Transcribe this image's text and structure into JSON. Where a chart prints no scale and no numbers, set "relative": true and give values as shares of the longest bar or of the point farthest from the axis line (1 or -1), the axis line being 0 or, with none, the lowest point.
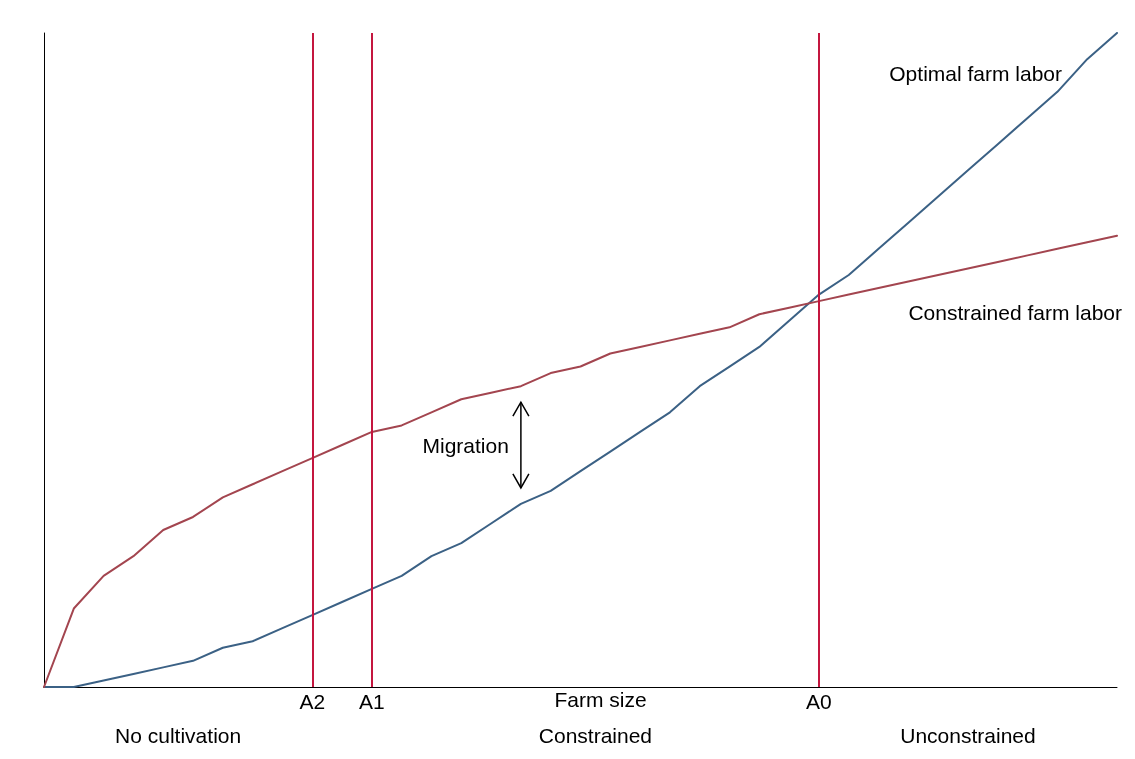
{
  "chart_data": {
    "type": "line",
    "relative": true,
    "xlabel": "Farm size",
    "categories": [
      null,
      null,
      null,
      null,
      null,
      null,
      null,
      null,
      null,
      "A2",
      null,
      "A1",
      null,
      null,
      null,
      null,
      null,
      null,
      null,
      null,
      null,
      null,
      null,
      null,
      null,
      null,
      "A0",
      null,
      null,
      null,
      null,
      null,
      null,
      null,
      null,
      null,
      null
    ],
    "series": [
      {
        "name": "Optimal farm labor",
        "color": "#3b6185",
        "values": [
          0,
          0.0,
          0.01,
          0.02,
          0.03,
          0.04,
          0.06,
          0.07,
          0.09,
          0.11,
          0.13,
          0.15,
          0.17,
          0.2,
          0.22,
          0.25,
          0.28,
          0.3,
          0.33,
          0.36,
          0.39,
          0.42,
          0.46,
          0.49,
          0.52,
          0.56,
          0.6,
          0.63,
          0.67,
          0.71,
          0.75,
          0.79,
          0.83,
          0.87,
          0.91,
          0.96,
          1
        ]
      },
      {
        "name": "Constrained farm labor",
        "color": "#a3454f",
        "values": [
          0,
          0.12,
          0.17,
          0.2,
          0.24,
          0.26,
          0.29,
          0.31,
          0.33,
          0.35,
          0.37,
          0.39,
          0.4,
          0.42,
          0.44,
          0.45,
          0.46,
          0.48,
          0.49,
          0.51,
          0.52,
          0.53,
          0.54,
          0.55,
          0.57,
          0.58,
          0.59,
          0.6,
          0.61,
          0.62,
          0.63,
          0.64,
          0.65,
          0.66,
          0.67,
          0.68,
          0.69
        ]
      }
    ],
    "ref_lines": [
      {
        "axis": "x",
        "value": "A2",
        "color": "#c4163f"
      },
      {
        "axis": "x",
        "value": "A1",
        "color": "#c4163f"
      },
      {
        "axis": "x",
        "value": "A0",
        "color": "#c4163f"
      }
    ],
    "annotations": [
      "Migration",
      "No cultivation",
      "Constrained",
      "Unconstrained"
    ],
    "tick_labels": "x",
    "grid": false,
    "legend": false,
    "marker": "none",
    "line_style": "solid"
  }
}
